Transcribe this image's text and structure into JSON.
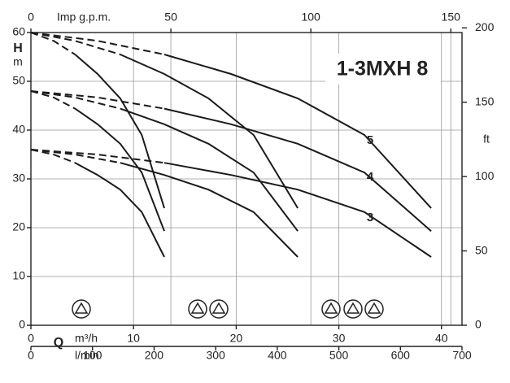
{
  "chart_data": {
    "type": "line",
    "title": "1-3MXH 8",
    "y_label": "H",
    "y_unit": "m",
    "y2_unit": "ft",
    "x_label": "Q",
    "x_unit": "m³/h",
    "x2_unit": "l/min",
    "x3_unit": "Imp g.p.m.",
    "xlim": [
      0,
      42
    ],
    "xticks": [
      0,
      10,
      20,
      30,
      40
    ],
    "x2lim": [
      0,
      700
    ],
    "x2ticks": [
      0,
      100,
      200,
      300,
      400,
      500,
      600,
      700
    ],
    "x3lim": [
      0,
      154
    ],
    "x3ticks": [
      0,
      50,
      100,
      150
    ],
    "ylim": [
      0,
      60
    ],
    "yticks": [
      0,
      10,
      20,
      30,
      40,
      50,
      60
    ],
    "y2lim": [
      0,
      196.85
    ],
    "y2ticks": [
      0,
      50,
      100,
      150,
      200
    ],
    "grid": true,
    "color": "#1a1a1a",
    "curve_labels": [
      "5",
      "4",
      "3"
    ],
    "series": [
      {
        "style": "dashed",
        "x": [
          0,
          2.2,
          4.3
        ],
        "values": [
          60,
          58.3,
          55.5
        ]
      },
      {
        "style": "solid",
        "x": [
          4.3,
          6.5,
          8.7,
          10.8,
          13
        ],
        "values": [
          55.5,
          51.5,
          46.5,
          39,
          24
        ]
      },
      {
        "style": "dashed",
        "x": [
          0,
          2.2,
          4.3
        ],
        "values": [
          48,
          46.7,
          44.4
        ]
      },
      {
        "style": "solid",
        "x": [
          4.3,
          6.5,
          8.7,
          10.8,
          13
        ],
        "values": [
          44.4,
          41.2,
          37.2,
          31.3,
          19.3
        ]
      },
      {
        "style": "dashed",
        "x": [
          0,
          2.2,
          4.3
        ],
        "values": [
          36,
          35,
          33.3
        ]
      },
      {
        "style": "solid",
        "x": [
          4.3,
          6.5,
          8.7,
          10.8,
          13
        ],
        "values": [
          33.3,
          30.8,
          27.8,
          23.2,
          14
        ]
      },
      {
        "style": "dashed",
        "x": [
          0,
          4.3,
          8.7
        ],
        "values": [
          60,
          58.3,
          55.5
        ]
      },
      {
        "style": "solid",
        "x": [
          8.7,
          13,
          17.3,
          21.7,
          26
        ],
        "values": [
          55.5,
          51.5,
          46.5,
          39,
          24
        ]
      },
      {
        "style": "dashed",
        "x": [
          0,
          4.3,
          8.7
        ],
        "values": [
          48,
          46.7,
          44.4
        ]
      },
      {
        "style": "solid",
        "x": [
          8.7,
          13,
          17.3,
          21.7,
          26
        ],
        "values": [
          44.4,
          41.2,
          37.2,
          31.3,
          19.3
        ]
      },
      {
        "style": "dashed",
        "x": [
          0,
          4.3,
          8.7
        ],
        "values": [
          36,
          35,
          33.3
        ]
      },
      {
        "style": "solid",
        "x": [
          8.7,
          13,
          17.3,
          21.7,
          26
        ],
        "values": [
          33.3,
          30.8,
          27.8,
          23.2,
          14
        ]
      },
      {
        "style": "dashed",
        "x": [
          0,
          6.5,
          13
        ],
        "values": [
          60,
          58.3,
          55.5
        ]
      },
      {
        "style": "solid",
        "x": [
          13,
          19.5,
          26,
          32.5,
          39
        ],
        "values": [
          55.5,
          51.5,
          46.5,
          39,
          24
        ]
      },
      {
        "style": "dashed",
        "x": [
          0,
          6.5,
          13
        ],
        "values": [
          48,
          46.7,
          44.4
        ]
      },
      {
        "style": "solid",
        "x": [
          13,
          19.5,
          26,
          32.5,
          39
        ],
        "values": [
          44.4,
          41.2,
          37.2,
          31.3,
          19.3
        ]
      },
      {
        "style": "dashed",
        "x": [
          0,
          6.5,
          13
        ],
        "values": [
          36,
          35,
          33.3
        ]
      },
      {
        "style": "solid",
        "x": [
          13,
          19.5,
          26,
          32.5,
          39
        ],
        "values": [
          33.3,
          30.8,
          27.8,
          23.2,
          14
        ]
      }
    ]
  }
}
